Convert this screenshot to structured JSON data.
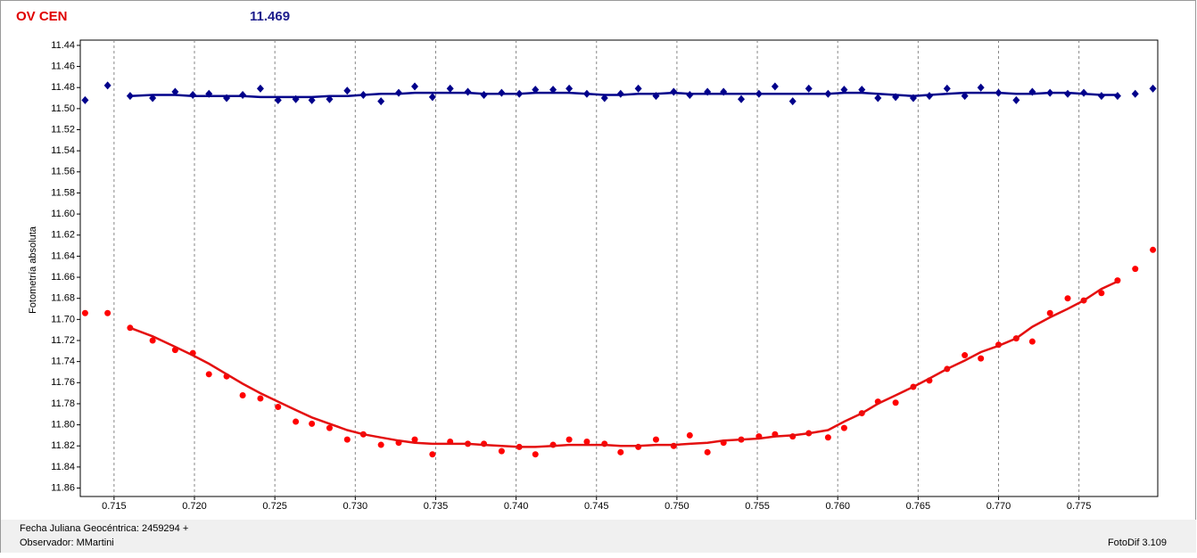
{
  "chart_data": {
    "type": "scatter",
    "title": "OV CEN",
    "subtitle": "11.469",
    "y_label": "Fotometría absoluta",
    "footer": {
      "date_label": "Fecha Juliana Geocéntrica: 2459294 +",
      "observer": "Observador: MMartini",
      "software": "FotoDif 3.109"
    },
    "xlim": [
      0.7129,
      0.7799
    ],
    "ylim": [
      11.435,
      11.868
    ],
    "y_inverted": true,
    "grid": "x",
    "xticks": [
      0.715,
      {
        "value": 0.72,
        "label": "0.720"
      },
      0.725,
      {
        "value": 0.73,
        "label": "0.730"
      },
      0.735,
      {
        "value": 0.74,
        "label": "0.740"
      },
      0.745,
      {
        "value": 0.75,
        "label": "0.750"
      },
      0.755,
      {
        "value": 0.76,
        "label": "0.760"
      },
      0.765,
      {
        "value": 0.77,
        "label": "0.770"
      },
      0.775
    ],
    "yticks": [
      11.44,
      11.46,
      11.48,
      {
        "value": 11.5,
        "label": "11.50"
      },
      11.52,
      11.54,
      11.56,
      11.58,
      {
        "value": 11.6,
        "label": "11.60"
      },
      11.62,
      11.64,
      11.66,
      11.68,
      {
        "value": 11.7,
        "label": "11.70"
      },
      11.72,
      11.74,
      11.76,
      11.78,
      {
        "value": 11.8,
        "label": "11.80"
      },
      11.82,
      11.84,
      11.86
    ],
    "x": [
      0.7132,
      0.7146,
      0.716,
      0.7174,
      0.7188,
      0.7199,
      0.7209,
      0.722,
      0.723,
      0.7241,
      0.7252,
      0.7263,
      0.7273,
      0.7284,
      0.7295,
      0.7305,
      0.7316,
      0.7327,
      0.7337,
      0.7348,
      0.7359,
      0.737,
      0.738,
      0.7391,
      0.7402,
      0.7412,
      0.7423,
      0.7433,
      0.7444,
      0.7455,
      0.7465,
      0.7476,
      0.7487,
      0.7498,
      0.7508,
      0.7519,
      0.7529,
      0.754,
      0.7551,
      0.7561,
      0.7572,
      0.7582,
      0.7594,
      0.7604,
      0.7615,
      0.7625,
      0.7636,
      0.7647,
      0.7657,
      0.7668,
      0.7679,
      0.7689,
      0.77,
      0.7711,
      0.7721,
      0.7732,
      0.7743,
      0.7753,
      0.7764,
      0.7774,
      0.7785,
      0.7796
    ],
    "series": [
      {
        "color": "#00008b",
        "marker": "diamond",
        "values": [
          11.492,
          11.478,
          11.488,
          11.49,
          11.484,
          11.487,
          11.486,
          11.49,
          11.487,
          11.481,
          11.492,
          11.491,
          11.492,
          11.491,
          11.483,
          11.487,
          11.493,
          11.485,
          11.479,
          11.489,
          11.481,
          11.484,
          11.487,
          11.485,
          11.486,
          11.482,
          11.482,
          11.481,
          11.486,
          11.49,
          11.486,
          11.481,
          11.488,
          11.484,
          11.487,
          11.484,
          11.484,
          11.491,
          11.486,
          11.479,
          11.493,
          11.481,
          11.486,
          11.482,
          11.482,
          11.49,
          11.489,
          11.49,
          11.488,
          11.481,
          11.488,
          11.48,
          11.485,
          11.492,
          11.484,
          11.485,
          11.486,
          11.485,
          11.488,
          11.488,
          11.486,
          11.481
        ]
      },
      {
        "color": "#ff0000",
        "marker": "circle",
        "values": [
          11.694,
          11.694,
          11.708,
          11.72,
          11.729,
          11.732,
          11.752,
          11.754,
          11.772,
          11.775,
          11.783,
          11.797,
          11.799,
          11.803,
          11.814,
          11.809,
          11.819,
          11.817,
          11.814,
          11.828,
          11.816,
          11.818,
          11.818,
          11.825,
          11.821,
          11.828,
          11.819,
          11.814,
          11.816,
          11.818,
          11.826,
          11.821,
          11.814,
          11.82,
          11.81,
          11.826,
          11.817,
          11.814,
          11.811,
          11.809,
          11.811,
          11.808,
          11.812,
          11.803,
          11.789,
          11.778,
          11.779,
          11.764,
          11.758,
          11.747,
          11.734,
          11.737,
          11.724,
          11.718,
          11.721,
          11.694,
          11.68,
          11.682,
          11.675,
          11.663,
          11.652,
          11.634
        ]
      },
      {
        "color": "#00008b",
        "marker": "none",
        "values": [
          null,
          null,
          11.488,
          11.487,
          11.487,
          11.488,
          11.488,
          11.488,
          11.488,
          11.489,
          11.489,
          11.489,
          11.489,
          11.488,
          11.488,
          11.487,
          11.486,
          11.486,
          11.485,
          11.485,
          11.485,
          11.485,
          11.486,
          11.486,
          11.486,
          11.485,
          11.485,
          11.485,
          11.486,
          11.487,
          11.487,
          11.486,
          11.486,
          11.485,
          11.486,
          11.486,
          11.486,
          11.486,
          11.486,
          11.486,
          11.486,
          11.486,
          11.486,
          11.485,
          11.485,
          11.486,
          11.487,
          11.488,
          11.487,
          11.486,
          11.485,
          11.485,
          11.485,
          11.486,
          11.486,
          11.485,
          11.485,
          11.486,
          11.487,
          11.487,
          null,
          null
        ]
      },
      {
        "color": "#e41010",
        "marker": "none",
        "values": [
          null,
          null,
          11.708,
          11.716,
          11.726,
          11.734,
          11.742,
          11.752,
          11.761,
          11.77,
          11.778,
          11.786,
          11.793,
          11.799,
          11.805,
          11.809,
          11.812,
          11.815,
          11.817,
          11.818,
          11.818,
          11.818,
          11.819,
          11.82,
          11.821,
          11.821,
          11.82,
          11.819,
          11.819,
          11.819,
          11.82,
          11.82,
          11.819,
          11.819,
          11.818,
          11.817,
          11.815,
          11.814,
          11.813,
          11.811,
          11.81,
          11.808,
          11.805,
          11.797,
          11.789,
          11.78,
          11.772,
          11.764,
          11.756,
          11.747,
          11.739,
          11.731,
          11.725,
          11.718,
          11.707,
          11.698,
          11.69,
          11.682,
          11.671,
          11.664,
          null,
          null
        ]
      }
    ]
  }
}
